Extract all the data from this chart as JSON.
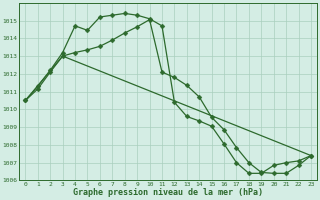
{
  "line1_x": [
    0,
    1,
    2,
    3,
    4,
    5,
    6,
    7,
    8,
    9,
    10,
    11,
    12,
    13,
    14,
    15,
    16,
    17,
    18,
    19,
    20,
    21,
    22,
    23
  ],
  "line1_y": [
    1010.5,
    1011.3,
    1012.2,
    1013.2,
    1014.7,
    1014.45,
    1015.2,
    1015.3,
    1015.4,
    1015.3,
    1015.1,
    1014.7,
    1010.4,
    1009.6,
    1009.35,
    1009.05,
    1008.05,
    1007.0,
    1006.4,
    1006.4,
    1006.85,
    1007.0,
    1007.1,
    1007.4
  ],
  "line2_x": [
    0,
    1,
    2,
    3,
    4,
    5,
    6,
    7,
    8,
    9,
    10,
    11,
    12,
    13,
    14,
    15,
    16,
    17,
    18,
    19,
    20,
    21,
    22,
    23
  ],
  "line2_y": [
    1010.5,
    1011.15,
    1012.1,
    1013.0,
    1013.2,
    1013.35,
    1013.55,
    1013.9,
    1014.3,
    1014.65,
    1015.05,
    1012.1,
    1011.8,
    1011.35,
    1010.7,
    1009.55,
    1008.85,
    1007.85,
    1007.0,
    1006.45,
    1006.4,
    1006.4,
    1006.85,
    1007.4
  ],
  "line3_x": [
    0,
    3,
    23
  ],
  "line3_y": [
    1010.5,
    1013.0,
    1007.4
  ],
  "line_color": "#2d6a2d",
  "bg_color": "#d4ede4",
  "grid_color": "#aacfbe",
  "xlabel": "Graphe pression niveau de la mer (hPa)",
  "ylim": [
    1006,
    1016
  ],
  "xlim": [
    -0.5,
    23.5
  ],
  "yticks": [
    1006,
    1007,
    1008,
    1009,
    1010,
    1011,
    1012,
    1013,
    1014,
    1015
  ],
  "xticks": [
    0,
    1,
    2,
    3,
    4,
    5,
    6,
    7,
    8,
    9,
    10,
    11,
    12,
    13,
    14,
    15,
    16,
    17,
    18,
    19,
    20,
    21,
    22,
    23
  ],
  "marker_size": 2.5,
  "line_width": 0.9
}
